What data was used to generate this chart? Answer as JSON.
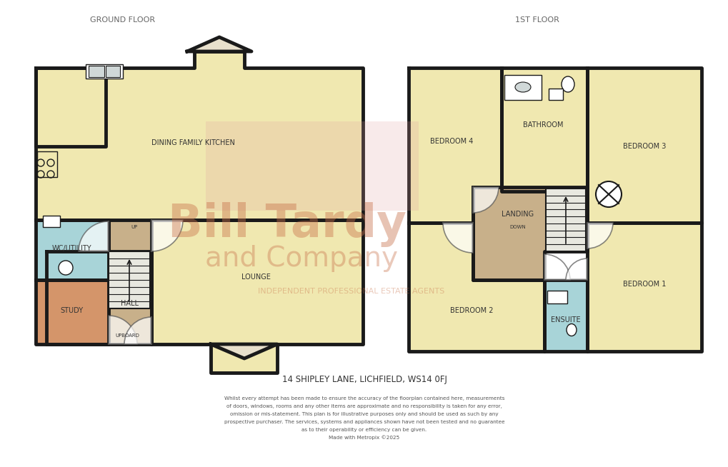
{
  "bg_color": "#ffffff",
  "wall_color": "#1a1a1a",
  "floor_yellow": "#f0e8b0",
  "floor_tan": "#c8b08a",
  "floor_blue": "#a8d4d8",
  "floor_gray": "#d0d0d0",
  "floor_orange": "#d4956a",
  "title": "14 SHIPLEY LANE, LICHFIELD, WS14 0FJ",
  "ground_floor_label": "GROUND FLOOR",
  "first_floor_label": "1ST FLOOR",
  "disclaimer": "Whilst every attempt has been made to ensure the accuracy of the floorplan contained here, measurements\nof doors, windows, rooms and any other items are approximate and no responsibility is taken for any error,\nomission or mis-statement. This plan is for illustrative purposes only and should be used as such by any\nprospective purchaser. The services, systems and appliances shown have not been tested and no guarantee\nas to their operability or efficiency can be given.\nMade with Metropix ©2025",
  "watermark_text1": "Bill Tardy",
  "watermark_text2": "and Company",
  "watermark_text3": "INDEPENDENT PROFESSIONAL ESTATE AGENTS"
}
